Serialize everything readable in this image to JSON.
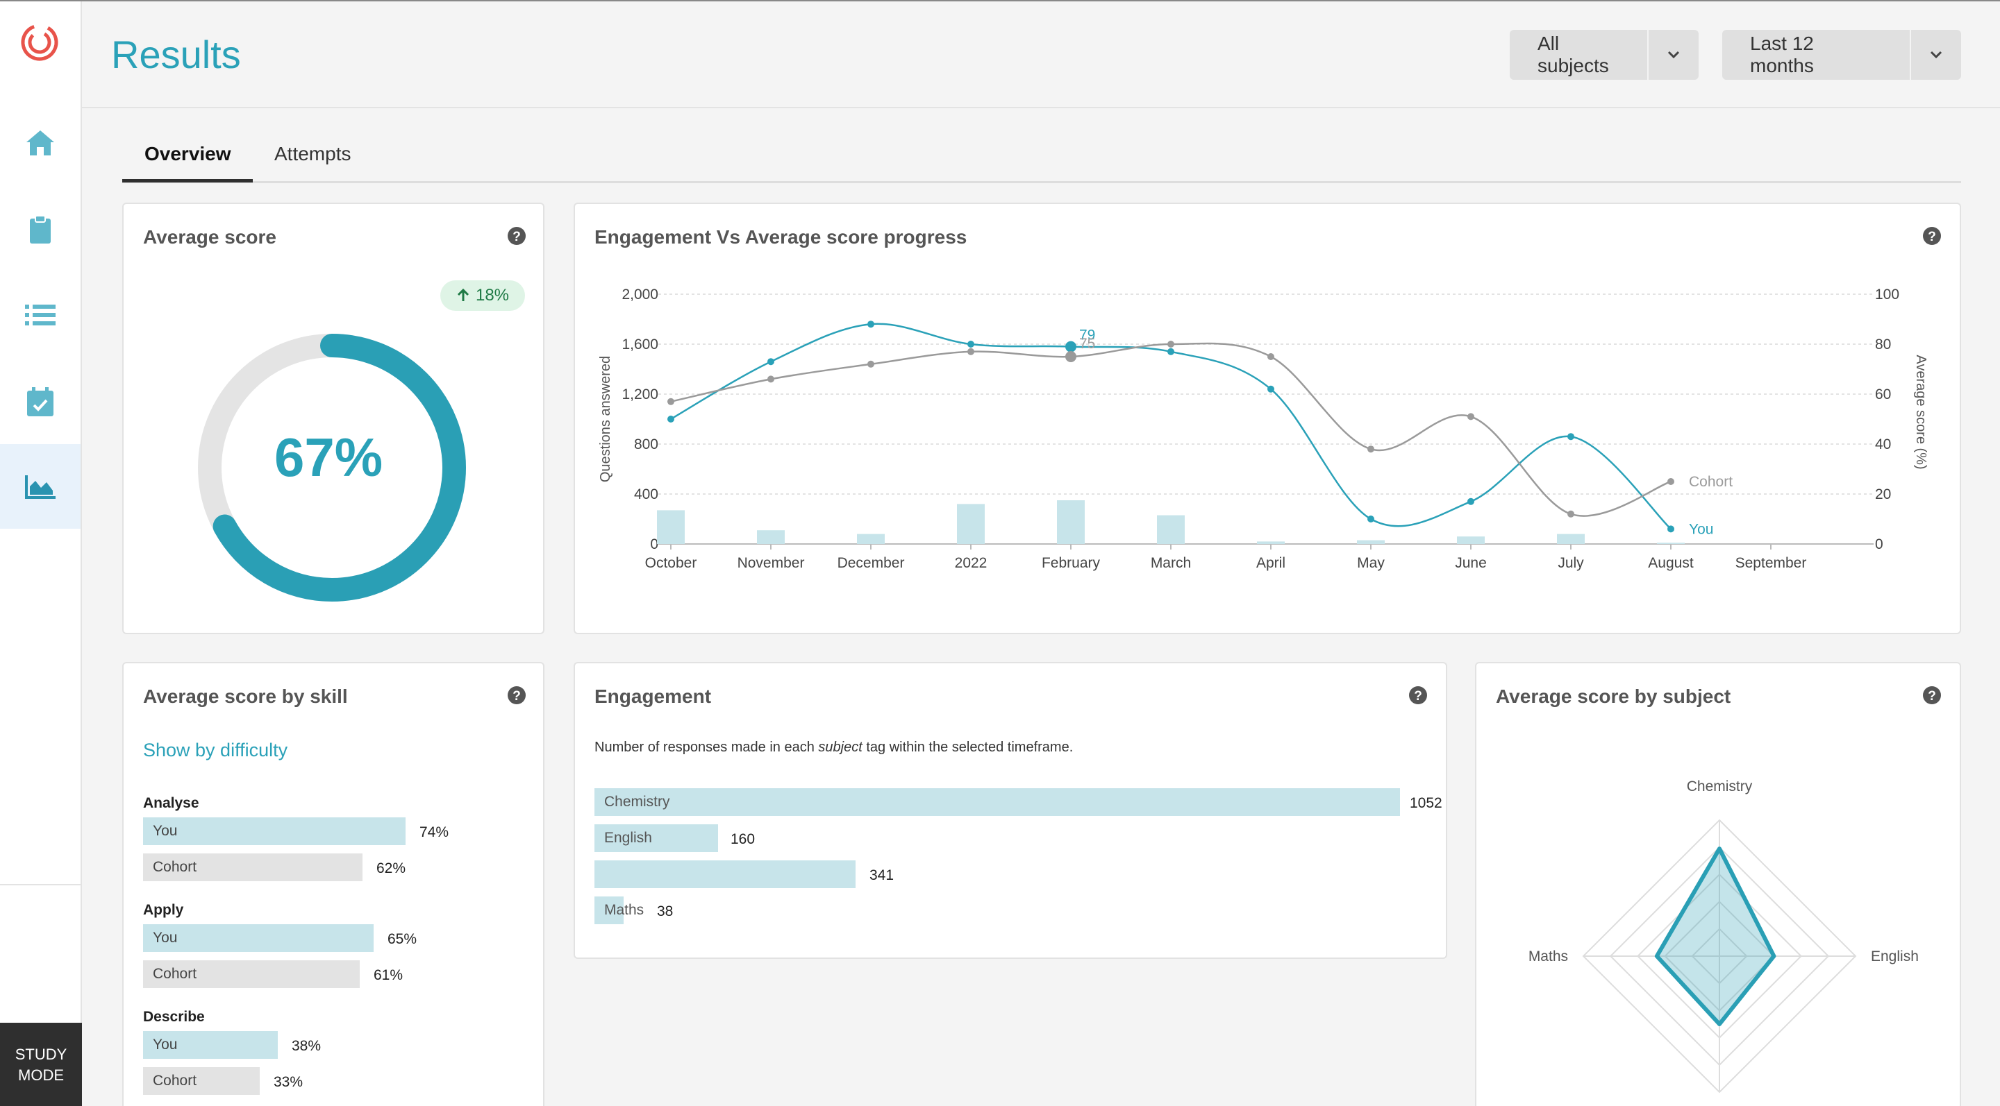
{
  "app": {
    "brand_color": "#2aa1b8",
    "accent_coral": "#e8534a",
    "sidebar": {
      "items": [
        {
          "icon": "home-icon",
          "label": "Home"
        },
        {
          "icon": "clipboard-icon",
          "label": "Assignments"
        },
        {
          "icon": "list-icon",
          "label": "Lists"
        },
        {
          "icon": "calendar-check-icon",
          "label": "Calendar"
        },
        {
          "icon": "chart-area-icon",
          "label": "Results",
          "active": true
        }
      ],
      "study_mode": {
        "line1": "STUDY",
        "line2": "MODE"
      }
    }
  },
  "header": {
    "title": "Results",
    "subject_filter": "All subjects",
    "time_filter": "Last 12 months"
  },
  "tabs": [
    {
      "label": "Overview",
      "active": true
    },
    {
      "label": "Attempts",
      "active": false
    }
  ],
  "average_score": {
    "title": "Average score",
    "value_text": "67%",
    "value": 67,
    "trend_direction": "up",
    "trend_text": "18%"
  },
  "engagement_progress": {
    "title": "Engagement Vs Average score progress",
    "marker_labels": {
      "you": "79",
      "cohort": "75"
    }
  },
  "chart_data": {
    "type": "line",
    "title": "Engagement Vs Average score progress",
    "categories": [
      "October",
      "November",
      "December",
      "2022",
      "February",
      "March",
      "April",
      "May",
      "June",
      "July",
      "August",
      "September"
    ],
    "ylabel": "Questions answered",
    "ylabel_right": "Average score (%)",
    "ylim": [
      0,
      2000
    ],
    "yticks": [
      "0",
      "400",
      "800",
      "1,200",
      "1,600",
      "2,000"
    ],
    "ylim_right": [
      0,
      100
    ],
    "yticks_right": [
      "0",
      "20",
      "40",
      "60",
      "80",
      "100"
    ],
    "grid": true,
    "bar_series": {
      "values": [
        270,
        110,
        80,
        320,
        350,
        230,
        20,
        30,
        60,
        80,
        10,
        0
      ]
    },
    "series": [
      {
        "name": "You",
        "axis": "right",
        "color": "#2aa1b8",
        "values": [
          50,
          73,
          88,
          80,
          79,
          77,
          62,
          10,
          17,
          43,
          6,
          null
        ]
      },
      {
        "name": "Cohort",
        "axis": "right",
        "color": "#9a9a9a",
        "values": [
          57,
          66,
          72,
          77,
          75,
          80,
          75,
          38,
          51,
          12,
          25,
          null
        ]
      }
    ]
  },
  "skill": {
    "title": "Average score by skill",
    "link": "Show by difficulty",
    "you_label": "You",
    "cohort_label": "Cohort",
    "groups": [
      {
        "name": "Analyse",
        "you": 74,
        "you_text": "74%",
        "cohort": 62,
        "cohort_text": "62%"
      },
      {
        "name": "Apply",
        "you": 65,
        "you_text": "65%",
        "cohort": 61,
        "cohort_text": "61%"
      },
      {
        "name": "Describe",
        "you": 38,
        "you_text": "38%",
        "cohort": 33,
        "cohort_text": "33%"
      }
    ]
  },
  "engagement": {
    "title": "Engagement",
    "desc_before": "Number of responses made in each ",
    "desc_em": "subject",
    "desc_after": " tag within the selected timeframe.",
    "rows": [
      {
        "label": "Chemistry",
        "value": 1052,
        "value_text": "1052"
      },
      {
        "label": "English",
        "value": 160,
        "value_text": "160"
      },
      {
        "label": "",
        "value": 341,
        "value_text": "341"
      },
      {
        "label": "Maths",
        "value": 38,
        "value_text": "38"
      }
    ]
  },
  "subject": {
    "title": "Average score by subject",
    "axes": [
      "Chemistry",
      "English",
      "Maths"
    ],
    "you_scores": [
      79,
      40,
      46
    ]
  }
}
